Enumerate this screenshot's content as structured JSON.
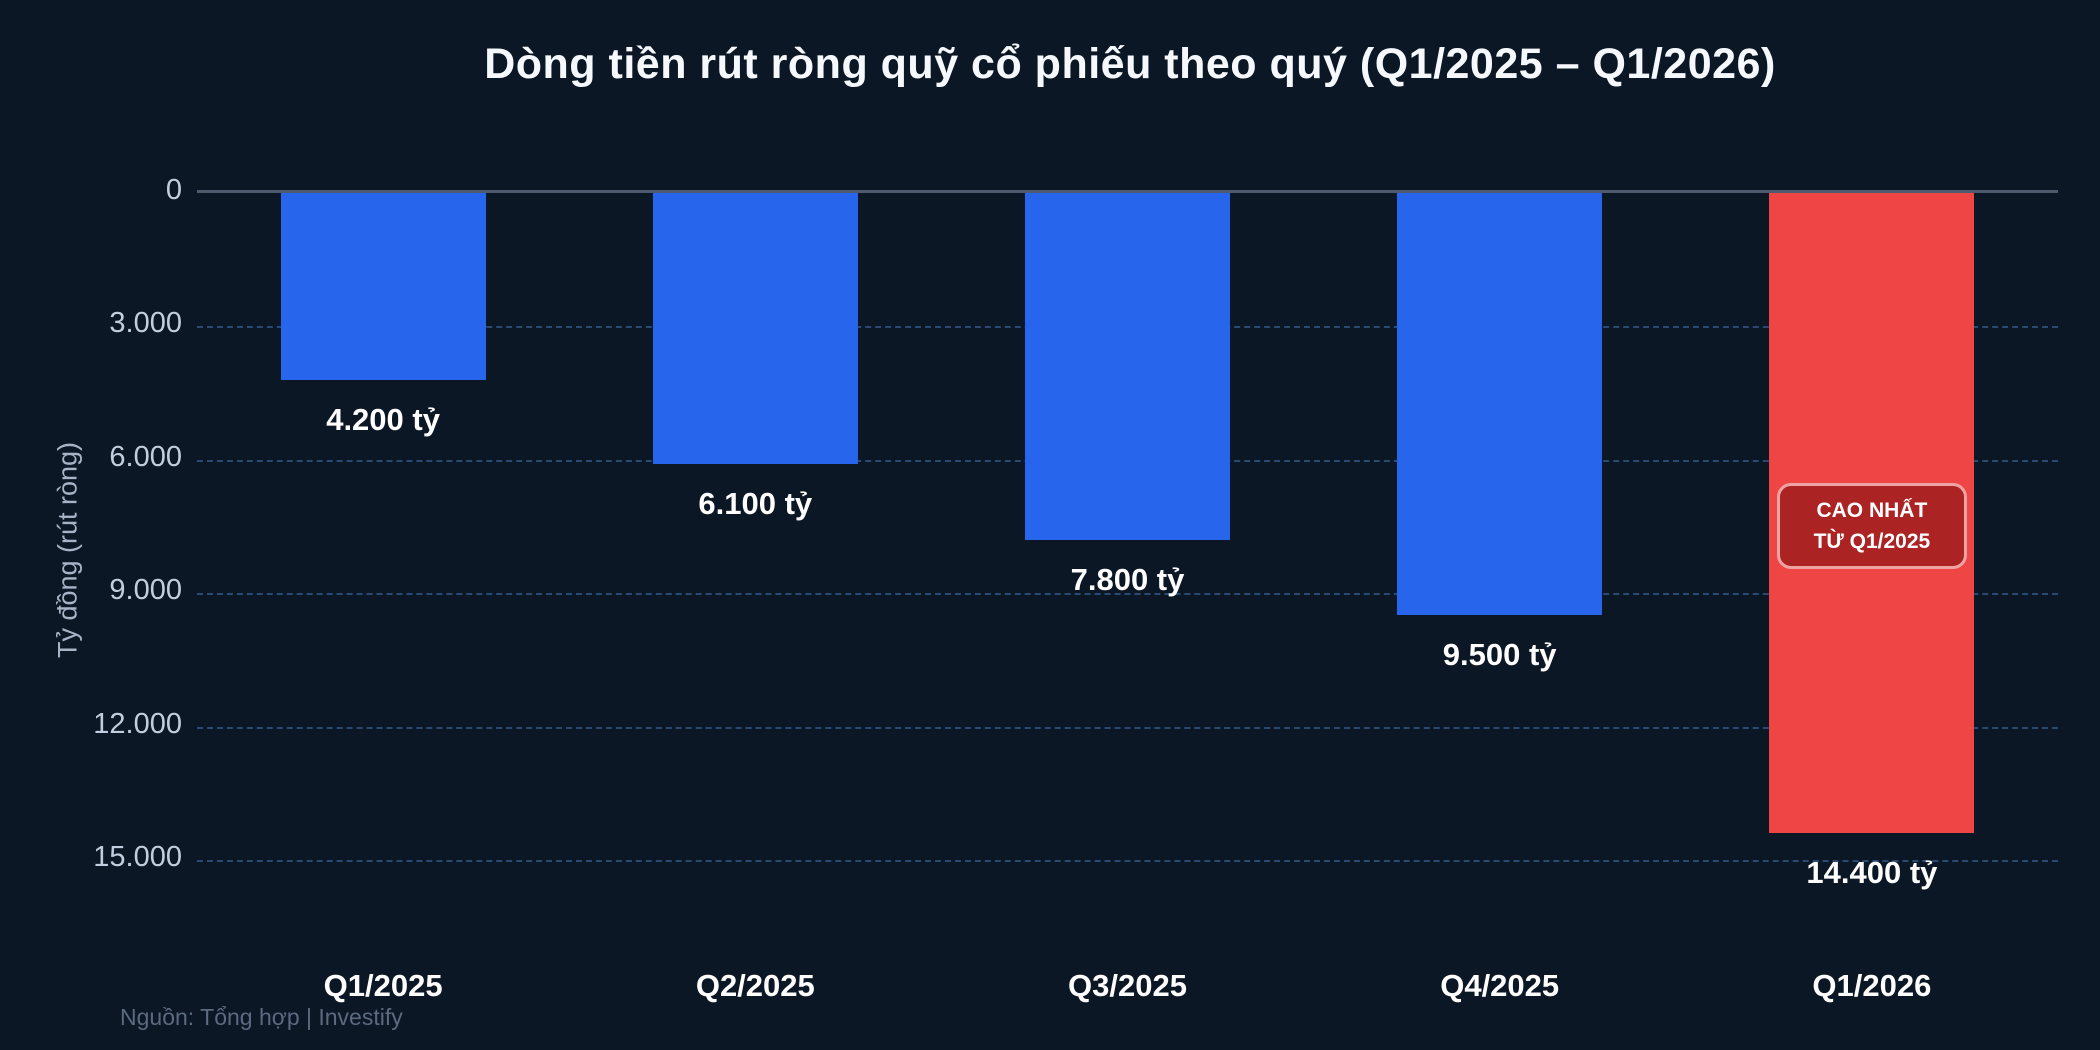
{
  "title": "Dòng tiền rút ròng quỹ cổ phiếu theo quý (Q1/2025 – Q1/2026)",
  "source": "Nguồn: Tổng hợp | Investify",
  "colors": {
    "background": "#0c1725",
    "bar_blue": "#2765ec",
    "bar_red": "#ef4545",
    "badge_bg": "#ab2323",
    "badge_border": "#f0a3a3",
    "zero_line": "#4d5a6e",
    "gridline": "#2b4a72",
    "tick_text": "#c2cedf",
    "axis_title_text": "#a7b4c7",
    "label_text": "#ffffff",
    "source_text": "#5b6a80"
  },
  "chart_data": {
    "type": "bar",
    "title": "Dòng tiền rút ròng quỹ cổ phiếu theo quý (Q1/2025 – Q1/2026)",
    "xlabel": "",
    "ylabel": "Tỷ đồng (rút ròng)",
    "categories": [
      "Q1/2025",
      "Q2/2025",
      "Q3/2025",
      "Q4/2025",
      "Q1/2026"
    ],
    "values": [
      4200,
      6100,
      7800,
      9500,
      14400
    ],
    "value_labels": [
      "4.200 tỷ",
      "6.100 tỷ",
      "7.800 tỷ",
      "9.500 tỷ",
      "14.400 tỷ"
    ],
    "bar_colors": [
      "#2765ec",
      "#2765ec",
      "#2765ec",
      "#2765ec",
      "#ef4545"
    ],
    "highlight_index": 4,
    "ylim": [
      0,
      15000
    ],
    "y_axis_inverted": true,
    "ytick_values": [
      0,
      3000,
      6000,
      9000,
      12000,
      15000
    ],
    "ytick_labels": [
      "0",
      "3.000",
      "6.000",
      "9.000",
      "12.000",
      "15.000"
    ],
    "grid": "horizontal-dashed",
    "legend": "none",
    "annotation": {
      "target": "Q1/2026",
      "lines": [
        "CAO NHẤT",
        "TỪ Q1/2025"
      ]
    }
  }
}
